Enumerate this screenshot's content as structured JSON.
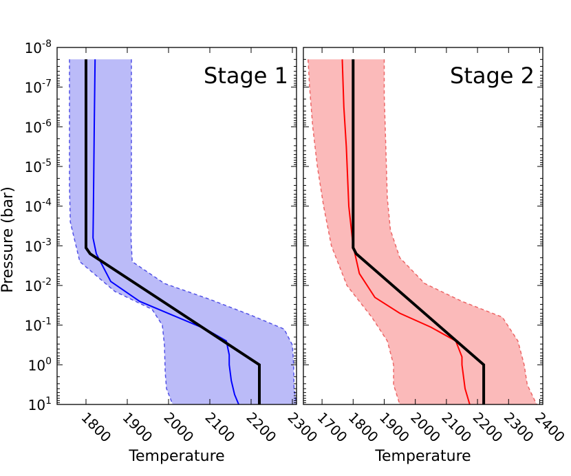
{
  "chart_data": [
    {
      "type": "line",
      "panel": "left",
      "title": "Stage 1",
      "xlabel": "Temperature",
      "ylabel": "Pressure (bar)",
      "xlim": [
        1730,
        2310
      ],
      "ylim_log10": [
        -8,
        1
      ],
      "x_ticks": [
        1800,
        1900,
        2000,
        2100,
        2200,
        2300
      ],
      "y_ticks": [
        {
          "exp": -8,
          "label": "10",
          "sup": "-8"
        },
        {
          "exp": -7,
          "label": "10",
          "sup": "-7"
        },
        {
          "exp": -6,
          "label": "10",
          "sup": "-6"
        },
        {
          "exp": -5,
          "label": "10",
          "sup": "-5"
        },
        {
          "exp": -4,
          "label": "10",
          "sup": "-4"
        },
        {
          "exp": -3,
          "label": "10",
          "sup": "-3"
        },
        {
          "exp": -2,
          "label": "10",
          "sup": "-2"
        },
        {
          "exp": -1,
          "label": "10",
          "sup": "-1"
        },
        {
          "exp": 0,
          "label": "10",
          "sup": "0"
        },
        {
          "exp": 1,
          "label": "10",
          "sup": "1"
        }
      ],
      "colors": {
        "fill": "#bbbbf8",
        "edge": "#5050e6",
        "median": "#0000ff",
        "truth": "#000000"
      },
      "series": [
        {
          "name": "truth",
          "points": [
            [
              1800,
              -7.7
            ],
            [
              1800,
              -2.95
            ],
            [
              1810,
              -2.8
            ],
            [
              2220,
              0.0
            ],
            [
              2220,
              1.0
            ]
          ]
        },
        {
          "name": "median",
          "points": [
            [
              1822,
              -7.7
            ],
            [
              1820,
              -6.0
            ],
            [
              1818,
              -4.0
            ],
            [
              1817,
              -3.2
            ],
            [
              1825,
              -2.8
            ],
            [
              1860,
              -2.1
            ],
            [
              1930,
              -1.6
            ],
            [
              2010,
              -1.25
            ],
            [
              2090,
              -0.9
            ],
            [
              2140,
              -0.6
            ],
            [
              2147,
              -0.25
            ],
            [
              2147,
              0.0
            ],
            [
              2152,
              0.4
            ],
            [
              2160,
              0.75
            ],
            [
              2170,
              1.0
            ]
          ]
        },
        {
          "name": "upper_bound",
          "points": [
            [
              1910,
              -7.7
            ],
            [
              1910,
              -4.0
            ],
            [
              1909,
              -3.2
            ],
            [
              1912,
              -2.6
            ],
            [
              1990,
              -2.05
            ],
            [
              2100,
              -1.65
            ],
            [
              2200,
              -1.25
            ],
            [
              2280,
              -0.9
            ],
            [
              2300,
              -0.5
            ],
            [
              2303,
              0.0
            ],
            [
              2304,
              0.6
            ],
            [
              2310,
              1.0
            ]
          ]
        },
        {
          "name": "lower_bound",
          "points": [
            [
              1760,
              -7.7
            ],
            [
              1760,
              -6.5
            ],
            [
              1760,
              -4.5
            ],
            [
              1762,
              -3.6
            ],
            [
              1785,
              -2.6
            ],
            [
              1870,
              -1.85
            ],
            [
              1960,
              -1.4
            ],
            [
              1985,
              -1.0
            ],
            [
              1990,
              -0.5
            ],
            [
              1992,
              0.2
            ],
            [
              1995,
              0.6
            ],
            [
              2010,
              1.0
            ]
          ]
        }
      ]
    },
    {
      "type": "line",
      "panel": "right",
      "title": "Stage 2",
      "xlabel": "Temperature",
      "xlim": [
        1640,
        2410
      ],
      "ylim_log10": [
        -8,
        1
      ],
      "x_ticks": [
        1700,
        1800,
        1900,
        2000,
        2100,
        2200,
        2300,
        2400
      ],
      "colors": {
        "fill": "#fbbaba",
        "edge": "#ec6565",
        "median": "#ff0000",
        "truth": "#000000"
      },
      "series": [
        {
          "name": "truth",
          "points": [
            [
              1800,
              -7.7
            ],
            [
              1800,
              -2.95
            ],
            [
              1810,
              -2.8
            ],
            [
              2220,
              0.0
            ],
            [
              2220,
              1.0
            ]
          ]
        },
        {
          "name": "median",
          "points": [
            [
              1765,
              -7.7
            ],
            [
              1770,
              -6.5
            ],
            [
              1778,
              -5.5
            ],
            [
              1786,
              -4.0
            ],
            [
              1800,
              -3.0
            ],
            [
              1820,
              -2.3
            ],
            [
              1870,
              -1.7
            ],
            [
              1950,
              -1.3
            ],
            [
              2050,
              -0.95
            ],
            [
              2130,
              -0.6
            ],
            [
              2150,
              -0.2
            ],
            [
              2150,
              0.0
            ],
            [
              2160,
              0.6
            ],
            [
              2175,
              1.0
            ]
          ]
        },
        {
          "name": "upper_bound",
          "points": [
            [
              1900,
              -7.7
            ],
            [
              1900,
              -6.8
            ],
            [
              1905,
              -5.5
            ],
            [
              1910,
              -4.2
            ],
            [
              1920,
              -3.4
            ],
            [
              1950,
              -2.7
            ],
            [
              2030,
              -2.05
            ],
            [
              2150,
              -1.6
            ],
            [
              2280,
              -1.2
            ],
            [
              2330,
              -0.6
            ],
            [
              2350,
              0.0
            ],
            [
              2360,
              0.5
            ],
            [
              2390,
              1.0
            ]
          ]
        },
        {
          "name": "lower_bound",
          "points": [
            [
              1655,
              -7.7
            ],
            [
              1660,
              -7.0
            ],
            [
              1670,
              -6.0
            ],
            [
              1685,
              -5.0
            ],
            [
              1705,
              -4.0
            ],
            [
              1730,
              -3.0
            ],
            [
              1780,
              -2.0
            ],
            [
              1860,
              -1.2
            ],
            [
              1910,
              -0.6
            ],
            [
              1930,
              0.0
            ],
            [
              1930,
              0.5
            ],
            [
              1950,
              1.0
            ]
          ]
        }
      ]
    }
  ]
}
